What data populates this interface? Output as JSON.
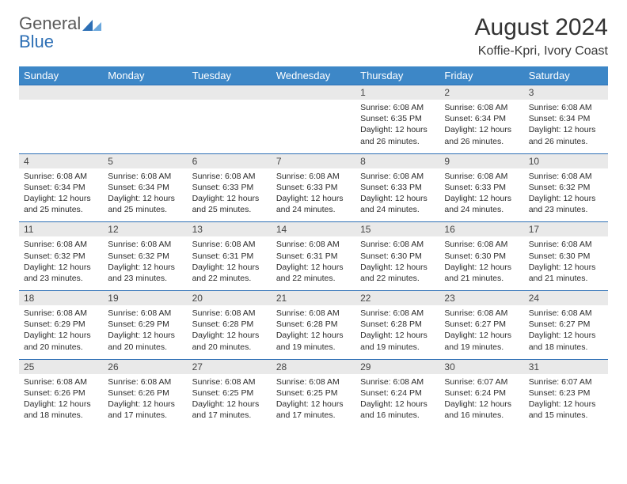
{
  "logo": {
    "general": "General",
    "blue": "Blue"
  },
  "title": "August 2024",
  "location": "Koffie-Kpri, Ivory Coast",
  "columns": [
    "Sunday",
    "Monday",
    "Tuesday",
    "Wednesday",
    "Thursday",
    "Friday",
    "Saturday"
  ],
  "colors": {
    "header_bg": "#3d87c7",
    "header_text": "#ffffff",
    "row_divider": "#2d6fb5",
    "daynum_bg": "#e9e9e9",
    "text": "#2c2c2c",
    "logo_blue": "#2d6fb5"
  },
  "weeks": [
    [
      null,
      null,
      null,
      null,
      {
        "n": "1",
        "sr": "6:08 AM",
        "ss": "6:35 PM",
        "dl": "12 hours and 26 minutes."
      },
      {
        "n": "2",
        "sr": "6:08 AM",
        "ss": "6:34 PM",
        "dl": "12 hours and 26 minutes."
      },
      {
        "n": "3",
        "sr": "6:08 AM",
        "ss": "6:34 PM",
        "dl": "12 hours and 26 minutes."
      }
    ],
    [
      {
        "n": "4",
        "sr": "6:08 AM",
        "ss": "6:34 PM",
        "dl": "12 hours and 25 minutes."
      },
      {
        "n": "5",
        "sr": "6:08 AM",
        "ss": "6:34 PM",
        "dl": "12 hours and 25 minutes."
      },
      {
        "n": "6",
        "sr": "6:08 AM",
        "ss": "6:33 PM",
        "dl": "12 hours and 25 minutes."
      },
      {
        "n": "7",
        "sr": "6:08 AM",
        "ss": "6:33 PM",
        "dl": "12 hours and 24 minutes."
      },
      {
        "n": "8",
        "sr": "6:08 AM",
        "ss": "6:33 PM",
        "dl": "12 hours and 24 minutes."
      },
      {
        "n": "9",
        "sr": "6:08 AM",
        "ss": "6:33 PM",
        "dl": "12 hours and 24 minutes."
      },
      {
        "n": "10",
        "sr": "6:08 AM",
        "ss": "6:32 PM",
        "dl": "12 hours and 23 minutes."
      }
    ],
    [
      {
        "n": "11",
        "sr": "6:08 AM",
        "ss": "6:32 PM",
        "dl": "12 hours and 23 minutes."
      },
      {
        "n": "12",
        "sr": "6:08 AM",
        "ss": "6:32 PM",
        "dl": "12 hours and 23 minutes."
      },
      {
        "n": "13",
        "sr": "6:08 AM",
        "ss": "6:31 PM",
        "dl": "12 hours and 22 minutes."
      },
      {
        "n": "14",
        "sr": "6:08 AM",
        "ss": "6:31 PM",
        "dl": "12 hours and 22 minutes."
      },
      {
        "n": "15",
        "sr": "6:08 AM",
        "ss": "6:30 PM",
        "dl": "12 hours and 22 minutes."
      },
      {
        "n": "16",
        "sr": "6:08 AM",
        "ss": "6:30 PM",
        "dl": "12 hours and 21 minutes."
      },
      {
        "n": "17",
        "sr": "6:08 AM",
        "ss": "6:30 PM",
        "dl": "12 hours and 21 minutes."
      }
    ],
    [
      {
        "n": "18",
        "sr": "6:08 AM",
        "ss": "6:29 PM",
        "dl": "12 hours and 20 minutes."
      },
      {
        "n": "19",
        "sr": "6:08 AM",
        "ss": "6:29 PM",
        "dl": "12 hours and 20 minutes."
      },
      {
        "n": "20",
        "sr": "6:08 AM",
        "ss": "6:28 PM",
        "dl": "12 hours and 20 minutes."
      },
      {
        "n": "21",
        "sr": "6:08 AM",
        "ss": "6:28 PM",
        "dl": "12 hours and 19 minutes."
      },
      {
        "n": "22",
        "sr": "6:08 AM",
        "ss": "6:28 PM",
        "dl": "12 hours and 19 minutes."
      },
      {
        "n": "23",
        "sr": "6:08 AM",
        "ss": "6:27 PM",
        "dl": "12 hours and 19 minutes."
      },
      {
        "n": "24",
        "sr": "6:08 AM",
        "ss": "6:27 PM",
        "dl": "12 hours and 18 minutes."
      }
    ],
    [
      {
        "n": "25",
        "sr": "6:08 AM",
        "ss": "6:26 PM",
        "dl": "12 hours and 18 minutes."
      },
      {
        "n": "26",
        "sr": "6:08 AM",
        "ss": "6:26 PM",
        "dl": "12 hours and 17 minutes."
      },
      {
        "n": "27",
        "sr": "6:08 AM",
        "ss": "6:25 PM",
        "dl": "12 hours and 17 minutes."
      },
      {
        "n": "28",
        "sr": "6:08 AM",
        "ss": "6:25 PM",
        "dl": "12 hours and 17 minutes."
      },
      {
        "n": "29",
        "sr": "6:08 AM",
        "ss": "6:24 PM",
        "dl": "12 hours and 16 minutes."
      },
      {
        "n": "30",
        "sr": "6:07 AM",
        "ss": "6:24 PM",
        "dl": "12 hours and 16 minutes."
      },
      {
        "n": "31",
        "sr": "6:07 AM",
        "ss": "6:23 PM",
        "dl": "12 hours and 15 minutes."
      }
    ]
  ],
  "labels": {
    "sunrise": "Sunrise:",
    "sunset": "Sunset:",
    "daylight": "Daylight:"
  }
}
